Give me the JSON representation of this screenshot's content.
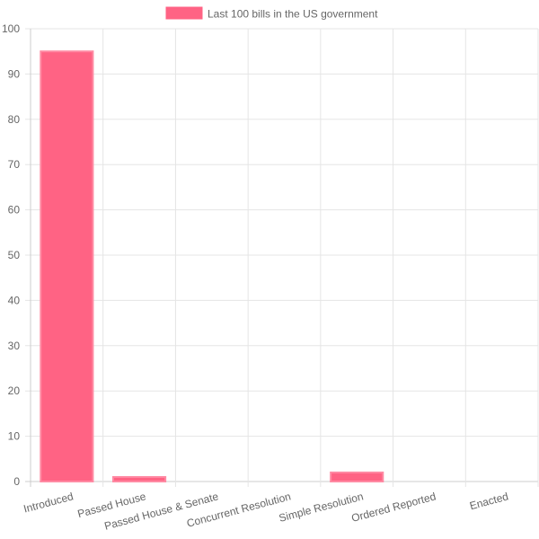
{
  "chart_data": {
    "type": "bar",
    "categories": [
      "Introduced",
      "Passed House",
      "Passed House & Senate",
      "Concurrent Resolution",
      "Simple Resolution",
      "Ordered Reported",
      "Enacted"
    ],
    "series": [
      {
        "name": "Last 100 bills in the US government",
        "values": [
          95,
          1,
          0,
          0,
          2,
          0,
          0
        ],
        "color": "#ff6384"
      }
    ],
    "yticks": [
      0,
      10,
      20,
      30,
      40,
      50,
      60,
      70,
      80,
      90,
      100
    ],
    "ylim": [
      0,
      100
    ],
    "grid": true,
    "legend_position": "top-center",
    "colors": {
      "bar_fill": "#ff6384",
      "grid": "#e5e5e5",
      "axis": "#cccccc",
      "text": "#666666"
    }
  }
}
